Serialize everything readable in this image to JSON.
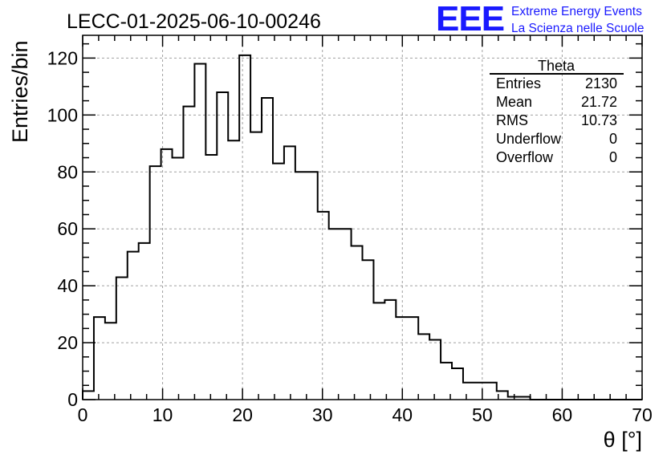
{
  "header": {
    "run_title": "LECC-01-2025-06-10-00246",
    "logo_text": "EEE",
    "logo_line1": "Extreme Energy Events",
    "logo_line2": "La Scienza nelle Scuole",
    "logo_color": "#1a1aff"
  },
  "stats_box": {
    "title": "Theta",
    "rows": [
      {
        "label": "Entries",
        "value": "2130"
      },
      {
        "label": "Mean",
        "value": "21.72"
      },
      {
        "label": "RMS",
        "value": "10.73"
      },
      {
        "label": "Underflow",
        "value": "0"
      },
      {
        "label": "Overflow",
        "value": "0"
      }
    ]
  },
  "chart_data": {
    "type": "bar",
    "style": "step-histogram",
    "title": "LECC-01-2025-06-10-00246",
    "xlabel": "θ [°]",
    "ylabel": "Entries/bin",
    "xlim": [
      0,
      70
    ],
    "ylim": [
      0,
      128
    ],
    "grid": true,
    "x_ticks": [
      0,
      10,
      20,
      30,
      40,
      50,
      60,
      70
    ],
    "y_ticks": [
      0,
      20,
      40,
      60,
      80,
      100,
      120
    ],
    "bin_width": 1.4,
    "bin_edges_start": 0,
    "values": [
      3,
      29,
      27,
      43,
      52,
      55,
      82,
      88,
      85,
      103,
      118,
      86,
      108,
      91,
      121,
      94,
      106,
      83,
      89,
      80,
      80,
      66,
      60,
      60,
      54,
      49,
      34,
      35,
      29,
      29,
      23,
      21,
      13,
      11,
      6,
      6,
      6,
      3,
      1,
      1,
      0,
      0,
      0,
      0,
      0,
      0,
      0,
      0,
      0,
      0
    ],
    "line_color": "#000000"
  }
}
